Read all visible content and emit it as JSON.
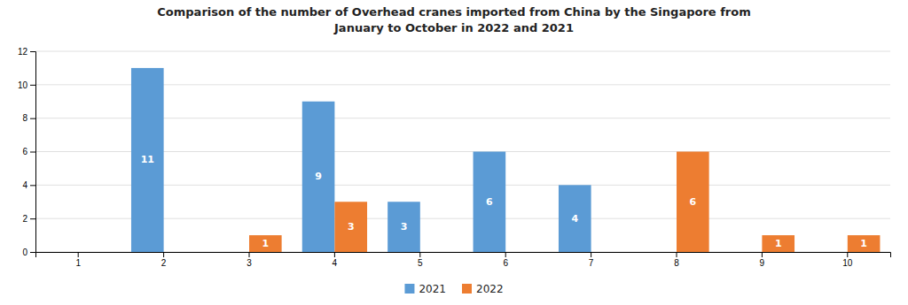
{
  "chart_data": {
    "type": "bar",
    "title": "Comparison of the number of Overhead cranes imported from China by the Singapore from\nJanuary to October in 2022 and 2021",
    "categories": [
      "1",
      "2",
      "3",
      "4",
      "5",
      "6",
      "7",
      "8",
      "9",
      "10"
    ],
    "series": [
      {
        "name": "2021",
        "color": "#5b9bd5",
        "values": [
          0,
          11,
          0,
          9,
          3,
          6,
          4,
          0,
          0,
          0
        ]
      },
      {
        "name": "2022",
        "color": "#ed7d31",
        "values": [
          0,
          0,
          1,
          3,
          0,
          0,
          0,
          6,
          1,
          1
        ]
      }
    ],
    "ylim": [
      0,
      12
    ],
    "yticks": [
      0,
      2,
      4,
      6,
      8,
      10,
      12
    ],
    "grid": true,
    "legend": "bottom",
    "data_labels": true
  }
}
